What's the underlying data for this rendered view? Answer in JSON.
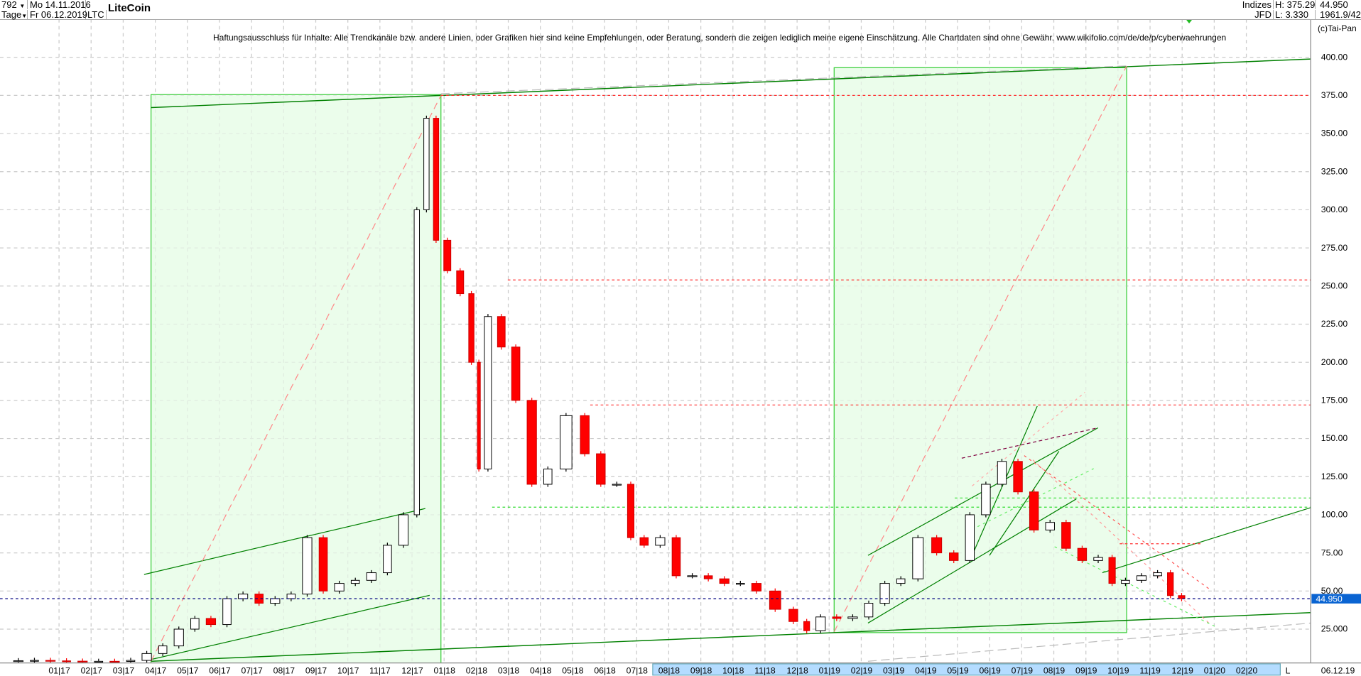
{
  "header": {
    "bars_count": "792",
    "start_date": "Mo 14.11.2016",
    "period": "Tage",
    "end_date": "Fr 06.12.2019",
    "symbol": "LTC",
    "name": "LiteCoin",
    "exchange_group": "Indizes",
    "exchange": "JFD",
    "high": "H: 375.29",
    "low": "L: 3.330",
    "last": "44.950",
    "extra": "1961.9/42"
  },
  "copyright": "(c)Tai-Pan",
  "disclaimer": "Haftungsausschluss für Inhalte: Alle Trendkanäle bzw. andere Linien, oder Grafiken hier sind keine Empfehlungen, oder Beratung, sondern die zeigen lediglich meine eigene Einschätzung. Alle Chartdaten sind ohne Gewähr.  www.wikifolio.com/de/de/p/cyberwaehrungen",
  "bottom_bar": {
    "scale_mode": "L",
    "cursor_date": "06.12.19"
  },
  "colors": {
    "up_candle": "#ffffff",
    "down_candle": "#ff0000",
    "box_fill": "#ebfdeb",
    "box_border": "#33cc33",
    "trend_line": "#008000",
    "price_line": "#000080",
    "price_label_bg": "#0a64d2",
    "axis_highlight": "#b4dcff"
  },
  "chart_data": {
    "type": "candlestick",
    "yaxis_ticks": [
      25,
      50,
      75,
      100,
      125,
      150,
      175,
      200,
      225,
      250,
      275,
      300,
      325,
      350,
      375,
      400
    ],
    "yaxis_tick_labels": [
      "25.000",
      "50.00",
      "75.00",
      "100.00",
      "125.00",
      "150.00",
      "175.00",
      "200.00",
      "225.00",
      "250.00",
      "275.00",
      "300.00",
      "325.00",
      "350.00",
      "375.00",
      "400.00"
    ],
    "ylim": [
      0,
      420
    ],
    "grid": true,
    "current_price": 44.95,
    "current_price_label": "44.950",
    "month_labels": [
      {
        "m": "01",
        "y": "17"
      },
      {
        "m": "02",
        "y": "17"
      },
      {
        "m": "03",
        "y": "17"
      },
      {
        "m": "04",
        "y": "17"
      },
      {
        "m": "05",
        "y": "17"
      },
      {
        "m": "06",
        "y": "17"
      },
      {
        "m": "07",
        "y": "17"
      },
      {
        "m": "08",
        "y": "17"
      },
      {
        "m": "09",
        "y": "17"
      },
      {
        "m": "10",
        "y": "17"
      },
      {
        "m": "11",
        "y": "17"
      },
      {
        "m": "12",
        "y": "17"
      },
      {
        "m": "01",
        "y": "18"
      },
      {
        "m": "02",
        "y": "18"
      },
      {
        "m": "03",
        "y": "18"
      },
      {
        "m": "04",
        "y": "18"
      },
      {
        "m": "05",
        "y": "18"
      },
      {
        "m": "06",
        "y": "18"
      },
      {
        "m": "07",
        "y": "18"
      },
      {
        "m": "08",
        "y": "18"
      },
      {
        "m": "09",
        "y": "18"
      },
      {
        "m": "10",
        "y": "18"
      },
      {
        "m": "11",
        "y": "18"
      },
      {
        "m": "12",
        "y": "18"
      },
      {
        "m": "01",
        "y": "19"
      },
      {
        "m": "02",
        "y": "19"
      },
      {
        "m": "03",
        "y": "19"
      },
      {
        "m": "04",
        "y": "19"
      },
      {
        "m": "05",
        "y": "19"
      },
      {
        "m": "06",
        "y": "19"
      },
      {
        "m": "07",
        "y": "19"
      },
      {
        "m": "08",
        "y": "19"
      },
      {
        "m": "09",
        "y": "19"
      },
      {
        "m": "10",
        "y": "19"
      },
      {
        "m": "11",
        "y": "19"
      },
      {
        "m": "12",
        "y": "19"
      },
      {
        "m": "01",
        "y": "20"
      },
      {
        "m": "02",
        "y": "20"
      }
    ],
    "series": [
      {
        "date": "2016-11-15",
        "close": 4.0
      },
      {
        "date": "2016-12-01",
        "close": 4.3
      },
      {
        "date": "2016-12-15",
        "close": 4.5
      },
      {
        "date": "2017-01-01",
        "close": 4.2
      },
      {
        "date": "2017-01-15",
        "close": 4.0
      },
      {
        "date": "2017-02-01",
        "close": 3.8
      },
      {
        "date": "2017-02-15",
        "close": 3.9
      },
      {
        "date": "2017-03-01",
        "close": 3.8
      },
      {
        "date": "2017-03-15",
        "close": 4.5
      },
      {
        "date": "2017-04-01",
        "close": 9
      },
      {
        "date": "2017-04-15",
        "close": 14
      },
      {
        "date": "2017-05-01",
        "close": 25
      },
      {
        "date": "2017-05-15",
        "close": 32
      },
      {
        "date": "2017-06-01",
        "close": 28
      },
      {
        "date": "2017-06-15",
        "close": 45
      },
      {
        "date": "2017-07-01",
        "close": 48
      },
      {
        "date": "2017-07-15",
        "close": 42
      },
      {
        "date": "2017-08-01",
        "close": 45
      },
      {
        "date": "2017-08-15",
        "close": 48
      },
      {
        "date": "2017-09-01",
        "close": 85
      },
      {
        "date": "2017-09-15",
        "close": 50
      },
      {
        "date": "2017-10-01",
        "close": 55
      },
      {
        "date": "2017-10-15",
        "close": 57
      },
      {
        "date": "2017-11-01",
        "close": 62
      },
      {
        "date": "2017-11-15",
        "close": 80
      },
      {
        "date": "2017-12-01",
        "close": 100
      },
      {
        "date": "2017-12-10",
        "close": 300
      },
      {
        "date": "2017-12-19",
        "close": 360
      },
      {
        "date": "2017-12-28",
        "close": 280
      },
      {
        "date": "2018-01-10",
        "close": 260
      },
      {
        "date": "2018-01-22",
        "close": 245
      },
      {
        "date": "2018-02-01",
        "close": 200
      },
      {
        "date": "2018-02-06",
        "close": 130
      },
      {
        "date": "2018-02-18",
        "close": 230
      },
      {
        "date": "2018-03-01",
        "close": 210
      },
      {
        "date": "2018-03-15",
        "close": 175
      },
      {
        "date": "2018-04-01",
        "close": 120
      },
      {
        "date": "2018-04-15",
        "close": 130
      },
      {
        "date": "2018-05-05",
        "close": 165
      },
      {
        "date": "2018-05-20",
        "close": 140
      },
      {
        "date": "2018-06-05",
        "close": 120
      },
      {
        "date": "2018-06-20",
        "close": 120
      },
      {
        "date": "2018-07-01",
        "close": 85
      },
      {
        "date": "2018-07-15",
        "close": 80
      },
      {
        "date": "2018-08-01",
        "close": 85
      },
      {
        "date": "2018-08-15",
        "close": 60
      },
      {
        "date": "2018-09-01",
        "close": 60
      },
      {
        "date": "2018-09-15",
        "close": 58
      },
      {
        "date": "2018-10-01",
        "close": 55
      },
      {
        "date": "2018-10-15",
        "close": 55
      },
      {
        "date": "2018-11-01",
        "close": 50
      },
      {
        "date": "2018-11-20",
        "close": 38
      },
      {
        "date": "2018-12-05",
        "close": 30
      },
      {
        "date": "2018-12-15",
        "close": 24
      },
      {
        "date": "2019-01-01",
        "close": 33
      },
      {
        "date": "2019-01-15",
        "close": 32
      },
      {
        "date": "2019-02-01",
        "close": 33
      },
      {
        "date": "2019-02-15",
        "close": 42
      },
      {
        "date": "2019-03-01",
        "close": 55
      },
      {
        "date": "2019-03-15",
        "close": 58
      },
      {
        "date": "2019-04-03",
        "close": 85
      },
      {
        "date": "2019-04-20",
        "close": 75
      },
      {
        "date": "2019-05-05",
        "close": 70
      },
      {
        "date": "2019-05-20",
        "close": 100
      },
      {
        "date": "2019-06-05",
        "close": 120
      },
      {
        "date": "2019-06-20",
        "close": 135
      },
      {
        "date": "2019-07-05",
        "close": 115
      },
      {
        "date": "2019-07-20",
        "close": 90
      },
      {
        "date": "2019-08-05",
        "close": 95
      },
      {
        "date": "2019-08-20",
        "close": 78
      },
      {
        "date": "2019-09-05",
        "close": 70
      },
      {
        "date": "2019-09-20",
        "close": 72
      },
      {
        "date": "2019-10-01",
        "close": 55
      },
      {
        "date": "2019-10-15",
        "close": 57
      },
      {
        "date": "2019-11-01",
        "close": 60
      },
      {
        "date": "2019-11-15",
        "close": 62
      },
      {
        "date": "2019-11-25",
        "close": 47
      },
      {
        "date": "2019-12-06",
        "close": 45
      }
    ],
    "horizontal_levels": [
      {
        "price": 375,
        "style": "red-dotted"
      },
      {
        "price": 254,
        "style": "red-dotted"
      },
      {
        "price": 172,
        "style": "red-dotted"
      },
      {
        "price": 105,
        "style": "green-dotted"
      },
      {
        "price": 111,
        "style": "green-dotted"
      },
      {
        "price": 81,
        "style": "red-dotted"
      }
    ]
  }
}
